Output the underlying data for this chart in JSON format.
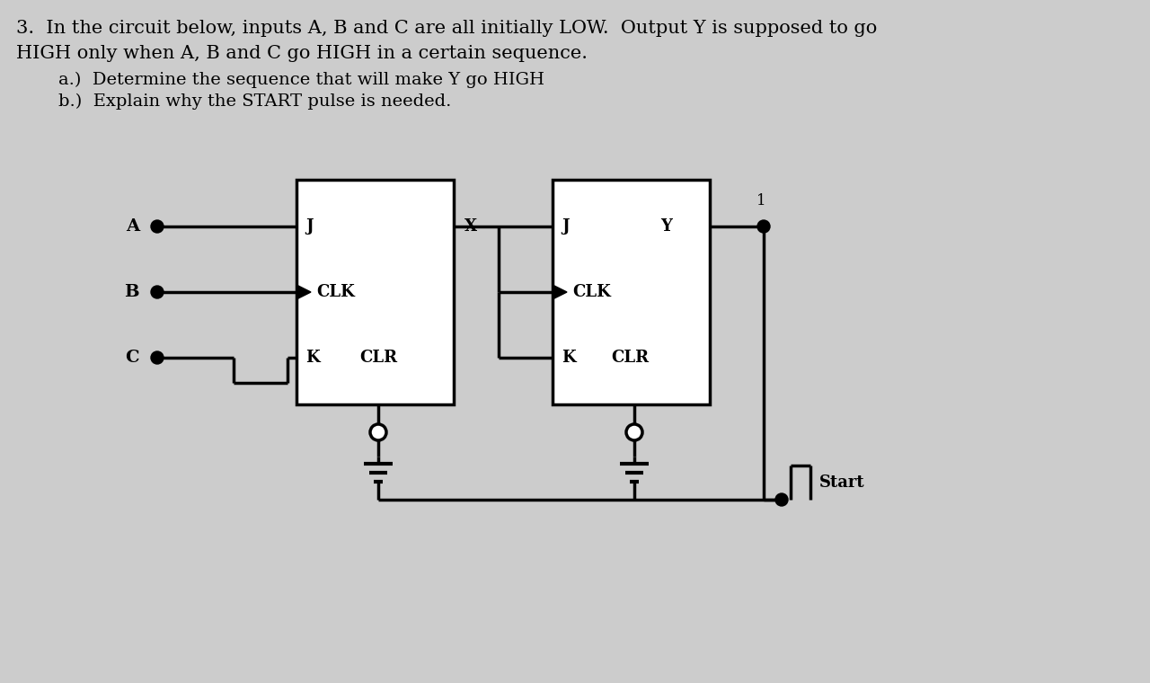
{
  "bg_color": "#cccccc",
  "title_line1": "3.  In the circuit below, inputs A, B and C are all initially LOW.  Output Y is supposed to go",
  "title_line2": "HIGH only when A, B and C go HIGH in a certain sequence.",
  "sub_line1": "    a.)  Determine the sequence that will make Y go HIGH",
  "sub_line2": "    b.)  Explain why the START pulse is needed.",
  "lw": 2.5,
  "font_size_title": 15,
  "font_size_label": 14,
  "font_size_pin": 13
}
